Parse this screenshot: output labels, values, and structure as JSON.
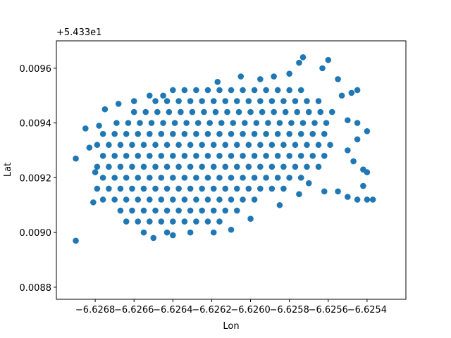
{
  "chart_data": {
    "type": "scatter",
    "x_label": "Lon",
    "y_label": "Lat",
    "y_offset_label": "+5.433e1",
    "color": "#1f77b4",
    "xlim": [
      -6.627,
      -6.6252
    ],
    "ylim": [
      0.008756,
      0.0097
    ],
    "xticks": [
      {
        "value": -6.6268,
        "label": "−6.6268"
      },
      {
        "value": -6.6266,
        "label": "−6.6266"
      },
      {
        "value": -6.6264,
        "label": "−6.6264"
      },
      {
        "value": -6.6262,
        "label": "−6.6262"
      },
      {
        "value": -6.626,
        "label": "−6.6260"
      },
      {
        "value": -6.6258,
        "label": "−6.6258"
      },
      {
        "value": -6.6256,
        "label": "−6.6256"
      },
      {
        "value": -6.6254,
        "label": "−6.6254"
      }
    ],
    "yticks": [
      0.0088,
      {
        "value": 0.009,
        "label": "0.0090"
      },
      0.0092,
      0.0094,
      0.0096
    ],
    "x": [
      -6.6264,
      -6.62634,
      -6.62628,
      -6.62622,
      -6.62616,
      -6.6261,
      -6.62604,
      -6.62598,
      -6.62592,
      -6.62586,
      -6.6258,
      -6.62574,
      -6.62649,
      -6.62643,
      -6.62637,
      -6.62631,
      -6.62625,
      -6.62619,
      -6.62613,
      -6.62607,
      -6.62601,
      -6.62595,
      -6.62589,
      -6.62583,
      -6.62577,
      -6.62571,
      -6.62565,
      -6.6266,
      -6.62654,
      -6.62648,
      -6.62642,
      -6.62636,
      -6.6263,
      -6.62624,
      -6.62618,
      -6.62612,
      -6.62606,
      -6.626,
      -6.62594,
      -6.62588,
      -6.62582,
      -6.62576,
      -6.6257,
      -6.62564,
      -6.62558,
      -6.62669,
      -6.62663,
      -6.62657,
      -6.62651,
      -6.62645,
      -6.62639,
      -6.62633,
      -6.62627,
      -6.62621,
      -6.62615,
      -6.62609,
      -6.62603,
      -6.62597,
      -6.62591,
      -6.62585,
      -6.62579,
      -6.62573,
      -6.62567,
      -6.62561,
      -6.62676,
      -6.6267,
      -6.62664,
      -6.62658,
      -6.62652,
      -6.62646,
      -6.6264,
      -6.62634,
      -6.62628,
      -6.62622,
      -6.62616,
      -6.6261,
      -6.62604,
      -6.62598,
      -6.62592,
      -6.62586,
      -6.6258,
      -6.62574,
      -6.62568,
      -6.62562,
      -6.62679,
      -6.62673,
      -6.62667,
      -6.62661,
      -6.62655,
      -6.62649,
      -6.62643,
      -6.62637,
      -6.62631,
      -6.62625,
      -6.62619,
      -6.62613,
      -6.62607,
      -6.62601,
      -6.62595,
      -6.62589,
      -6.62583,
      -6.62577,
      -6.62571,
      -6.62565,
      -6.62559,
      -6.62676,
      -6.6267,
      -6.62664,
      -6.62658,
      -6.62652,
      -6.62646,
      -6.6264,
      -6.62634,
      -6.62628,
      -6.62622,
      -6.62616,
      -6.6261,
      -6.62604,
      -6.62598,
      -6.62592,
      -6.62586,
      -6.6258,
      -6.62574,
      -6.62568,
      -6.62562,
      -6.62679,
      -6.62673,
      -6.62667,
      -6.62661,
      -6.62655,
      -6.62649,
      -6.62643,
      -6.62637,
      -6.62631,
      -6.62625,
      -6.62619,
      -6.62613,
      -6.62607,
      -6.62601,
      -6.62595,
      -6.62589,
      -6.62583,
      -6.62577,
      -6.62571,
      -6.62565,
      -6.62676,
      -6.6267,
      -6.62664,
      -6.62658,
      -6.62652,
      -6.62646,
      -6.6264,
      -6.62634,
      -6.62628,
      -6.62622,
      -6.62616,
      -6.6261,
      -6.62604,
      -6.62598,
      -6.62592,
      -6.62586,
      -6.6258,
      -6.62574,
      -6.62679,
      -6.62673,
      -6.62667,
      -6.62661,
      -6.62655,
      -6.62649,
      -6.62643,
      -6.62637,
      -6.62631,
      -6.62625,
      -6.62619,
      -6.62613,
      -6.62607,
      -6.62601,
      -6.62595,
      -6.62589,
      -6.62583,
      -6.62676,
      -6.6267,
      -6.62664,
      -6.62658,
      -6.62652,
      -6.62646,
      -6.6264,
      -6.62634,
      -6.62628,
      -6.62622,
      -6.62616,
      -6.6261,
      -6.62604,
      -6.62598,
      -6.62667,
      -6.62661,
      -6.62655,
      -6.62649,
      -6.62643,
      -6.62637,
      -6.62631,
      -6.62625,
      -6.62619,
      -6.62613,
      -6.62607,
      -6.62664,
      -6.62658,
      -6.62652,
      -6.62646,
      -6.6264,
      -6.62634,
      -6.62628,
      -6.62622,
      -6.62616,
      -6.62655,
      -6.62643,
      -6.62631,
      -6.62619,
      -6.6269,
      -6.6265,
      -6.6264,
      -6.6261,
      -6.626,
      -6.62585,
      -6.62575,
      -6.62675,
      -6.62668,
      -6.6266,
      -6.62652,
      -6.62645,
      -6.62685,
      -6.62678,
      -6.6269,
      -6.62683,
      -6.6268,
      -6.62681,
      -6.62617,
      -6.62605,
      -6.62595,
      -6.62588,
      -6.6258,
      -6.62575,
      -6.62573,
      -6.62563,
      -6.6256,
      -6.62555,
      -6.62553,
      -6.62548,
      -6.62545,
      -6.6255,
      -6.62545,
      -6.6254,
      -6.62545,
      -6.6255,
      -6.62547,
      -6.62542,
      -6.6254,
      -6.62542,
      -6.6255,
      -6.62545,
      -6.6254,
      -6.62537,
      -6.62562,
      -6.62555,
      -6.6257
    ],
    "y": [
      0.00952,
      0.00952,
      0.00952,
      0.00952,
      0.00952,
      0.00952,
      0.00952,
      0.00952,
      0.00952,
      0.00952,
      0.00952,
      0.00952,
      0.00948,
      0.00948,
      0.00948,
      0.00948,
      0.00948,
      0.00948,
      0.00948,
      0.00948,
      0.00948,
      0.00948,
      0.00948,
      0.00948,
      0.00948,
      0.00948,
      0.00948,
      0.00944,
      0.00944,
      0.00944,
      0.00944,
      0.00944,
      0.00944,
      0.00944,
      0.00944,
      0.00944,
      0.00944,
      0.00944,
      0.00944,
      0.00944,
      0.00944,
      0.00944,
      0.00944,
      0.00944,
      0.00944,
      0.0094,
      0.0094,
      0.0094,
      0.0094,
      0.0094,
      0.0094,
      0.0094,
      0.0094,
      0.0094,
      0.0094,
      0.0094,
      0.0094,
      0.0094,
      0.0094,
      0.0094,
      0.0094,
      0.0094,
      0.0094,
      0.0094,
      0.00936,
      0.00936,
      0.00936,
      0.00936,
      0.00936,
      0.00936,
      0.00936,
      0.00936,
      0.00936,
      0.00936,
      0.00936,
      0.00936,
      0.00936,
      0.00936,
      0.00936,
      0.00936,
      0.00936,
      0.00936,
      0.00936,
      0.00936,
      0.00932,
      0.00932,
      0.00932,
      0.00932,
      0.00932,
      0.00932,
      0.00932,
      0.00932,
      0.00932,
      0.00932,
      0.00932,
      0.00932,
      0.00932,
      0.00932,
      0.00932,
      0.00932,
      0.00932,
      0.00932,
      0.00932,
      0.00932,
      0.00932,
      0.00928,
      0.00928,
      0.00928,
      0.00928,
      0.00928,
      0.00928,
      0.00928,
      0.00928,
      0.00928,
      0.00928,
      0.00928,
      0.00928,
      0.00928,
      0.00928,
      0.00928,
      0.00928,
      0.00928,
      0.00928,
      0.00928,
      0.00928,
      0.00924,
      0.00924,
      0.00924,
      0.00924,
      0.00924,
      0.00924,
      0.00924,
      0.00924,
      0.00924,
      0.00924,
      0.00924,
      0.00924,
      0.00924,
      0.00924,
      0.00924,
      0.00924,
      0.00924,
      0.00924,
      0.00924,
      0.00924,
      0.0092,
      0.0092,
      0.0092,
      0.0092,
      0.0092,
      0.0092,
      0.0092,
      0.0092,
      0.0092,
      0.0092,
      0.0092,
      0.0092,
      0.0092,
      0.0092,
      0.0092,
      0.0092,
      0.0092,
      0.0092,
      0.00916,
      0.00916,
      0.00916,
      0.00916,
      0.00916,
      0.00916,
      0.00916,
      0.00916,
      0.00916,
      0.00916,
      0.00916,
      0.00916,
      0.00916,
      0.00916,
      0.00916,
      0.00916,
      0.00916,
      0.00912,
      0.00912,
      0.00912,
      0.00912,
      0.00912,
      0.00912,
      0.00912,
      0.00912,
      0.00912,
      0.00912,
      0.00912,
      0.00912,
      0.00912,
      0.00912,
      0.00908,
      0.00908,
      0.00908,
      0.00908,
      0.00908,
      0.00908,
      0.00908,
      0.00908,
      0.00908,
      0.00908,
      0.00908,
      0.00904,
      0.00904,
      0.00904,
      0.00904,
      0.00904,
      0.00904,
      0.00904,
      0.00904,
      0.00904,
      0.009,
      0.009,
      0.009,
      0.009,
      0.00897,
      0.00898,
      0.00899,
      0.00901,
      0.00905,
      0.0091,
      0.00914,
      0.00945,
      0.00947,
      0.00948,
      0.0095,
      0.0095,
      0.00938,
      0.00939,
      0.00927,
      0.00931,
      0.00922,
      0.00911,
      0.00955,
      0.00957,
      0.00956,
      0.00957,
      0.00958,
      0.00962,
      0.00964,
      0.0096,
      0.00963,
      0.00956,
      0.0095,
      0.00951,
      0.00952,
      0.00941,
      0.0094,
      0.00937,
      0.00934,
      0.0093,
      0.00926,
      0.00923,
      0.00922,
      0.00917,
      0.00913,
      0.00912,
      0.00912,
      0.00912,
      0.00915,
      0.00915,
      0.00918
    ]
  }
}
